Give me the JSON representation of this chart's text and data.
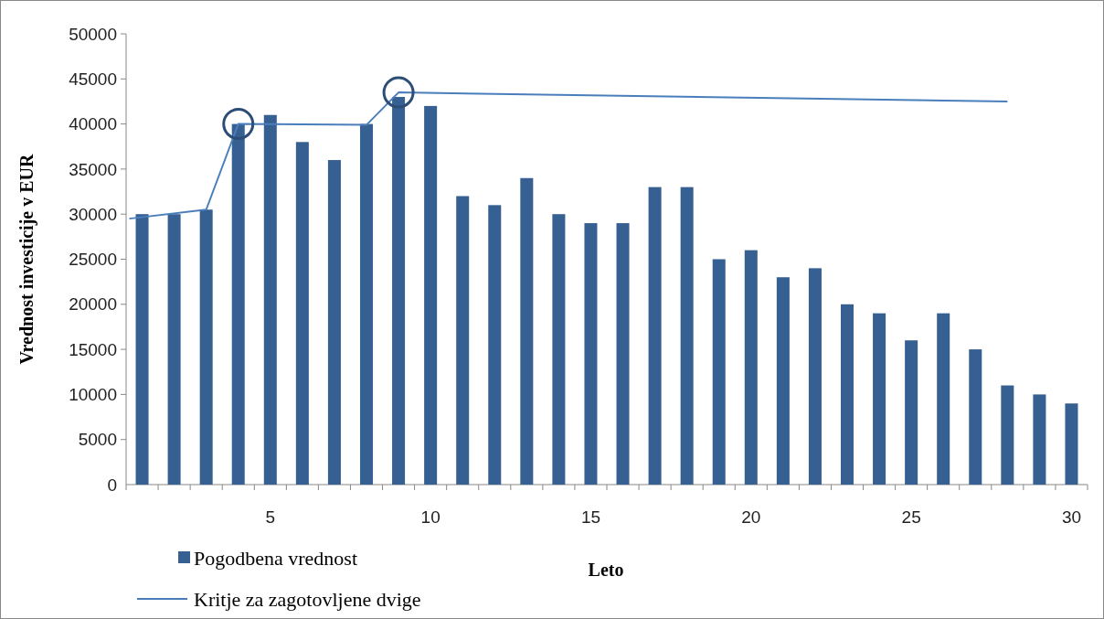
{
  "chart_data": {
    "type": "bar",
    "xlabel": "Leto",
    "ylabel": "Vrednost investicije v EUR",
    "xlim": [
      0.5,
      30.5
    ],
    "xticks": [
      {
        "value": 0.5,
        "label": null
      },
      {
        "value": 1.5,
        "label": null
      },
      {
        "value": 2.5,
        "label": null
      },
      {
        "value": 3.5,
        "label": null
      },
      {
        "value": 4.5,
        "label": null
      },
      {
        "value": 5.5,
        "label": null
      },
      {
        "value": 6.5,
        "label": null
      },
      {
        "value": 7.5,
        "label": null
      },
      {
        "value": 8.5,
        "label": null
      },
      {
        "value": 9.5,
        "label": null
      },
      {
        "value": 10.5,
        "label": null
      },
      {
        "value": 11.5,
        "label": null
      },
      {
        "value": 12.5,
        "label": null
      },
      {
        "value": 13.5,
        "label": null
      },
      {
        "value": 14.5,
        "label": null
      },
      {
        "value": 15.5,
        "label": null
      },
      {
        "value": 16.5,
        "label": null
      },
      {
        "value": 17.5,
        "label": null
      },
      {
        "value": 18.5,
        "label": null
      },
      {
        "value": 19.5,
        "label": null
      },
      {
        "value": 20.5,
        "label": null
      },
      {
        "value": 21.5,
        "label": null
      },
      {
        "value": 22.5,
        "label": null
      },
      {
        "value": 23.5,
        "label": null
      },
      {
        "value": 24.5,
        "label": null
      },
      {
        "value": 25.5,
        "label": null
      },
      {
        "value": 26.5,
        "label": null
      },
      {
        "value": 27.5,
        "label": null
      },
      {
        "value": 28.5,
        "label": null
      },
      {
        "value": 29.5,
        "label": null
      },
      {
        "value": 30.5,
        "label": null
      },
      5,
      10,
      15,
      20,
      25,
      30
    ],
    "ylim": [
      0,
      50000
    ],
    "yticks": [
      0,
      5000,
      10000,
      15000,
      20000,
      25000,
      30000,
      35000,
      40000,
      45000,
      50000
    ],
    "grid": false,
    "legend": "bottom left",
    "series": [
      {
        "name": "Pogodbena vrednost",
        "color": "#376092",
        "x": [
          1,
          2,
          3,
          4,
          5,
          6,
          7,
          8,
          9,
          10,
          11,
          12,
          13,
          14,
          15,
          16,
          17,
          18,
          19,
          20,
          21,
          22,
          23,
          24,
          25,
          26,
          27,
          28,
          29,
          30
        ],
        "values": [
          30000,
          30000,
          30500,
          40000,
          41000,
          38000,
          36000,
          40000,
          43000,
          42000,
          32000,
          31000,
          34000,
          30000,
          29000,
          29000,
          33000,
          33000,
          25000,
          26000,
          23000,
          24000,
          20000,
          19000,
          16000,
          19000,
          15000,
          11000,
          10000,
          9000
        ]
      },
      {
        "name": "Kritje za zagotovljene dvige",
        "type": "line",
        "color": "#4a7ebb",
        "x": [
          0.6,
          3,
          4,
          8,
          9,
          28
        ],
        "values": [
          29500,
          30500,
          40000,
          39900,
          43500,
          42500
        ]
      }
    ]
  }
}
